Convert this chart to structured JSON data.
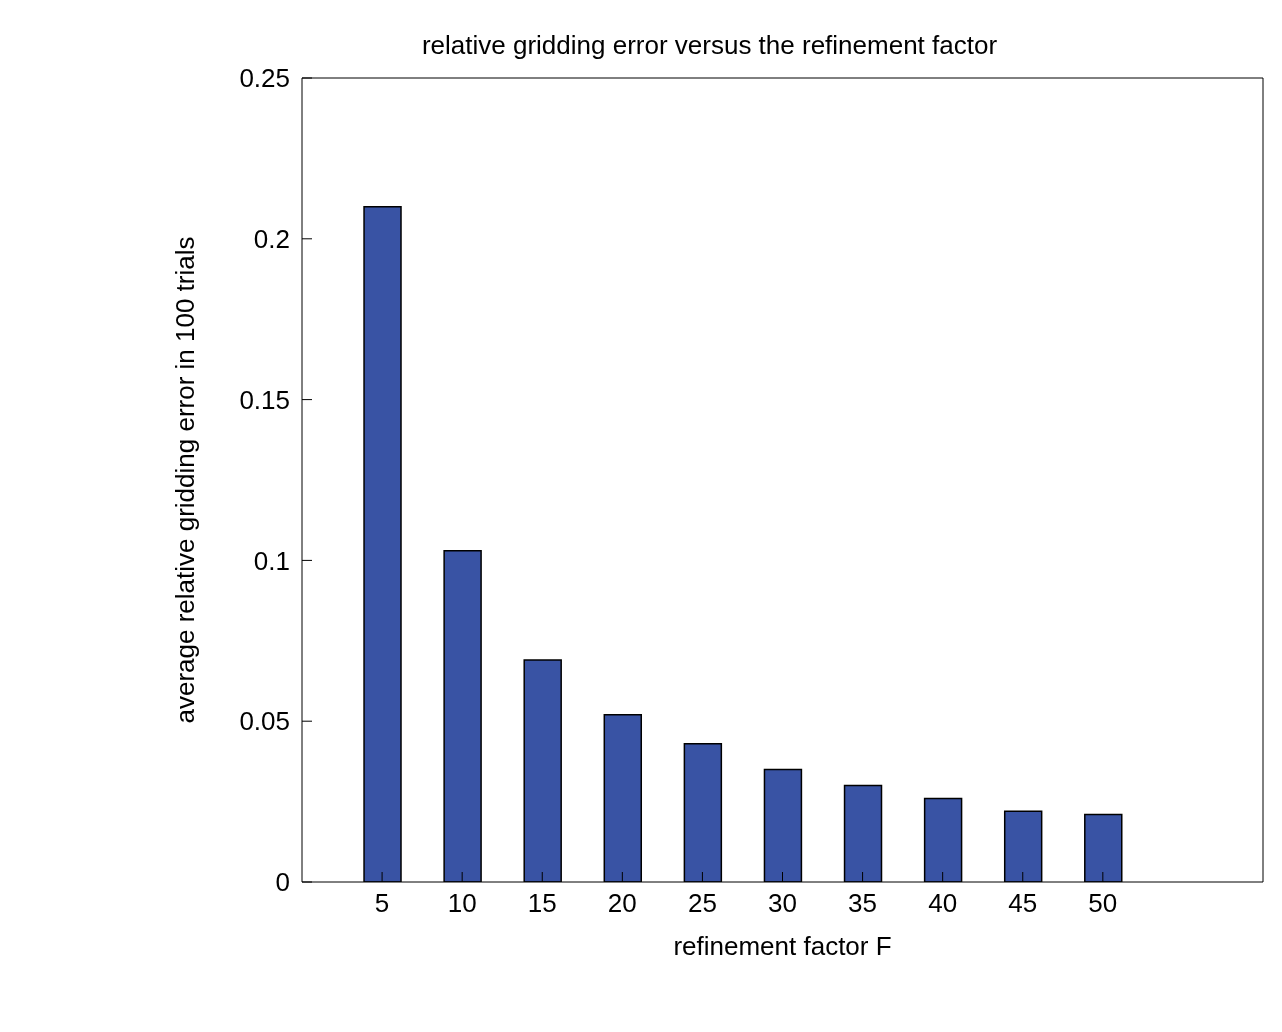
{
  "chart_data": {
    "type": "bar",
    "title": "relative gridding error versus the refinement factor",
    "xlabel": "refinement factor F",
    "ylabel": "average relative gridding error in 100 trials",
    "x": [
      5,
      10,
      15,
      20,
      25,
      30,
      35,
      40,
      45,
      50
    ],
    "values": [
      0.21,
      0.103,
      0.069,
      0.052,
      0.043,
      0.035,
      0.03,
      0.026,
      0.022,
      0.021
    ],
    "color": "#3953a4",
    "xlim": [
      0,
      60
    ],
    "xticks": [
      5,
      10,
      15,
      20,
      25,
      30,
      35,
      40,
      45,
      50
    ],
    "ylim": [
      0,
      0.25
    ],
    "yticks": [
      0,
      0.05,
      0.1,
      0.15,
      0.2,
      0.25
    ],
    "grid": false,
    "legend": false
  }
}
